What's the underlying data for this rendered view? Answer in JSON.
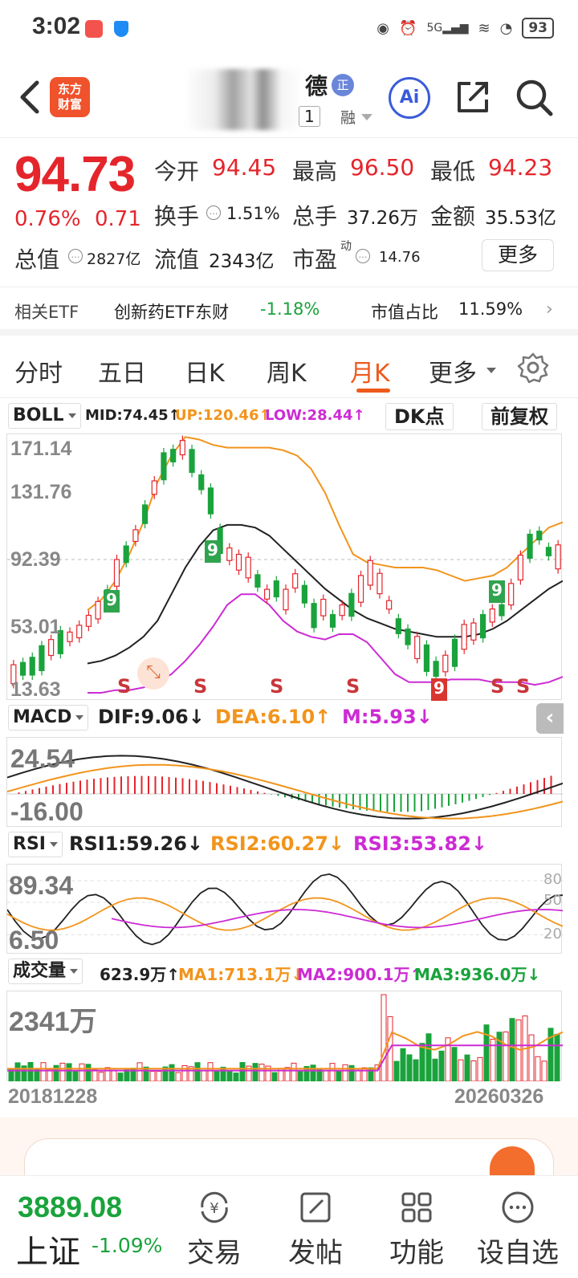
{
  "status_bar": {
    "time": "3:02",
    "battery": "93",
    "network": "5G"
  },
  "header": {
    "stock_name_visible": "德",
    "badge": "正",
    "code_visible": "1",
    "margin_tag": "融",
    "logo_line1": "东方",
    "logo_line2": "财富",
    "ai_label": "Ai"
  },
  "quote": {
    "price": "94.73",
    "change_pct": "0.76%",
    "change": "0.71",
    "open_label": "今开",
    "open": "94.45",
    "high_label": "最高",
    "high": "96.50",
    "low_label": "最低",
    "low": "94.23",
    "turnover_label": "换手",
    "turnover": "1.51%",
    "volume_label": "总手",
    "volume": "37.26万",
    "amount_label": "金额",
    "amount": "35.53亿",
    "mktcap_label": "总值",
    "mktcap": "2827亿",
    "float_label": "流值",
    "float_cap": "2343亿",
    "pe_label": "市盈",
    "pe_sup": "动",
    "pe": "14.76",
    "more_label": "更多"
  },
  "etf": {
    "label": "相关ETF",
    "name": "创新药ETF东财",
    "change": "-1.18%",
    "weight_label": "市值占比",
    "weight": "11.59%"
  },
  "tabs": [
    {
      "label": "分时",
      "active": false
    },
    {
      "label": "五日",
      "active": false
    },
    {
      "label": "日K",
      "active": false
    },
    {
      "label": "周K",
      "active": false
    },
    {
      "label": "月K",
      "active": true
    },
    {
      "label": "更多",
      "active": false
    }
  ],
  "boll": {
    "selector": "BOLL",
    "mid": "MID:74.45↑",
    "up": "UP:120.46↑",
    "low": "LOW:28.44↑",
    "dk_label": "DK点",
    "adjust_label": "前复权",
    "axis": [
      "171.14",
      "131.76",
      "92.39",
      "53.01",
      "13.63"
    ],
    "sell_marker": "S",
    "td_marker": "9"
  },
  "macd": {
    "selector": "MACD",
    "dif": "DIF:9.06↓",
    "dea": "DEA:6.10↑",
    "m": "M:5.93↓",
    "axis_top": "24.54",
    "axis_bottom": "-16.00"
  },
  "rsi": {
    "selector": "RSI",
    "rsi1": "RSI1:59.26↓",
    "rsi2": "RSI2:60.27↓",
    "rsi3": "RSI3:53.82↓",
    "axis_top": "89.34",
    "axis_bottom": "6.50",
    "levels": [
      "80",
      "50",
      "20"
    ]
  },
  "vol": {
    "selector": "成交量",
    "current": "623.9万↑",
    "ma1": "MA1:713.1万↓",
    "ma2": "MA2:900.1万↑",
    "ma3": "MA3:936.0万↓",
    "axis_top": "2341万"
  },
  "dates": {
    "start": "20181228",
    "end": "20260326"
  },
  "bottom_nav": {
    "index_value": "3889.08",
    "index_name": "上证",
    "index_change": "-1.09%",
    "items": [
      "交易",
      "发帖",
      "功能",
      "设自选"
    ]
  },
  "colors": {
    "up": "#e5252c",
    "down": "#1aa33c",
    "accent": "#ee5a1c",
    "ma_orange": "#f2941c",
    "ma_magenta": "#cc2bd4"
  }
}
